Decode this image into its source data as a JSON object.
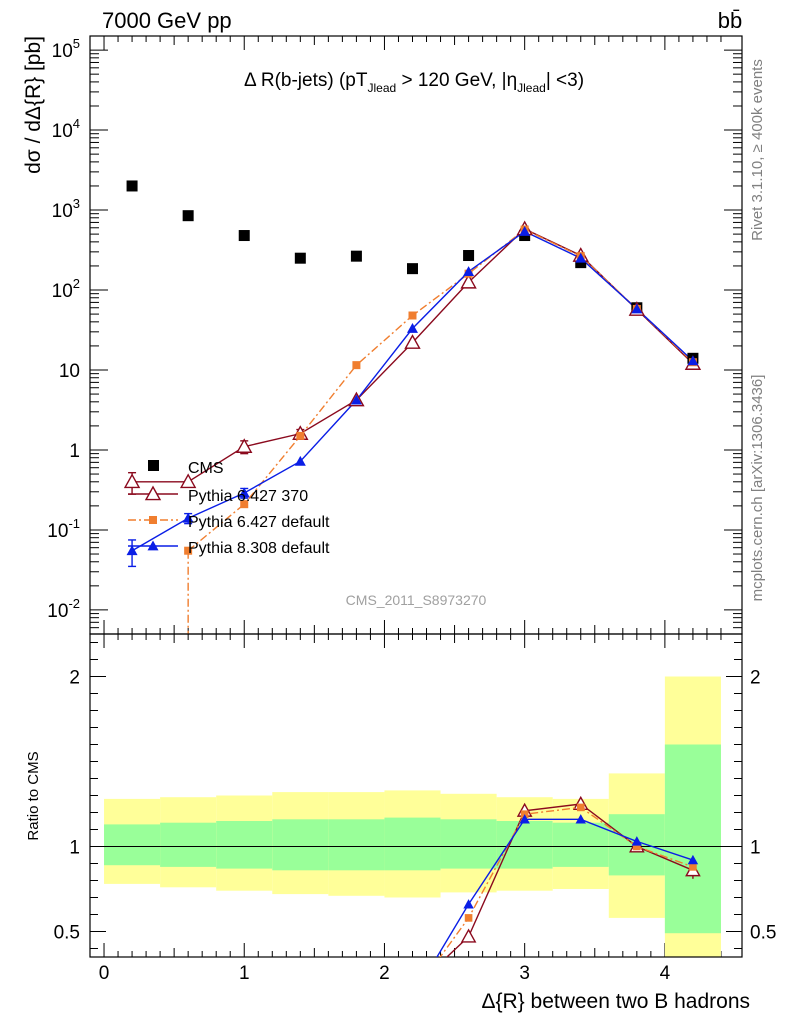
{
  "header": {
    "energy_label": "7000 GeV pp",
    "process_label": "bb̄",
    "plot_title": "Δ R(b-jets) (pT_Jlead > 120 GeV, |η_Jlead| <3)",
    "analysis_id": "CMS_2011_S8973270",
    "side_rivet": "Rivet 3.1.10, ≥ 400k events",
    "side_mcplots": "mcplots.cern.ch [arXiv:1306.3436]"
  },
  "chart_data": [
    {
      "type": "scatter",
      "panel": "main",
      "ylabel": "dσ / dΔ{R} [pb]",
      "yscale": "log",
      "ylim": [
        0.005,
        150000
      ],
      "xlim": [
        -0.1,
        4.55
      ],
      "ytick_labels": [
        "10^-2",
        "10^-1",
        "1",
        "10",
        "10^2",
        "10^3",
        "10^4",
        "10^5"
      ],
      "legend_position": "lower-left",
      "series": [
        {
          "name": "CMS",
          "style": "data",
          "color": "#000000",
          "x": [
            0.2,
            0.6,
            1.0,
            1.4,
            1.8,
            2.2,
            2.6,
            3.0,
            3.4,
            3.8,
            4.2
          ],
          "y": [
            2000,
            850,
            480,
            250,
            265,
            185,
            270,
            480,
            220,
            60,
            14
          ]
        },
        {
          "name": "Pythia 6.427 370",
          "style": "triangle-open",
          "color": "#8b0a1e",
          "x": [
            0.2,
            0.6,
            1.0,
            1.4,
            1.8,
            2.2,
            2.6,
            3.0,
            3.4,
            3.8,
            4.2
          ],
          "y": [
            0.4,
            0.4,
            1.1,
            1.6,
            4.2,
            22,
            125,
            580,
            270,
            57,
            12
          ],
          "yerr": [
            0.12,
            0,
            0.2,
            0.2,
            0,
            0,
            0,
            0,
            0,
            0,
            0
          ]
        },
        {
          "name": "Pythia 6.427 default",
          "style": "square-dashdot",
          "color": "#f07e2f",
          "x": [
            0.6,
            1.0,
            1.4,
            1.8,
            2.2,
            2.6,
            3.0,
            3.4,
            3.8,
            4.2
          ],
          "y": [
            0.055,
            0.21,
            1.5,
            11.5,
            48,
            160,
            570,
            265,
            58,
            12.5
          ]
        },
        {
          "name": "Pythia 8.308 default",
          "style": "triangle-filled",
          "color": "#0a1ee6",
          "x": [
            0.2,
            0.6,
            1.0,
            1.4,
            1.8,
            2.2,
            2.6,
            3.0,
            3.4,
            3.8,
            4.2
          ],
          "y": [
            0.055,
            0.14,
            0.29,
            0.72,
            4.2,
            33,
            170,
            540,
            250,
            58,
            13
          ],
          "yerr": [
            0.02,
            0.02,
            0.04,
            0,
            0,
            0,
            0,
            0,
            0,
            0,
            0
          ]
        }
      ]
    },
    {
      "type": "line",
      "panel": "ratio",
      "ylabel": "Ratio to CMS",
      "xlabel": "Δ{R} between two B hadrons",
      "ylim": [
        0.35,
        2.25
      ],
      "xlim": [
        -0.1,
        4.55
      ],
      "ytick_labels": [
        "0.5",
        "1",
        "2"
      ],
      "xtick_labels": [
        "0",
        "1",
        "2",
        "3",
        "4"
      ],
      "bands": {
        "edges": [
          0.0,
          0.4,
          0.8,
          1.2,
          1.6,
          2.0,
          2.4,
          2.8,
          3.2,
          3.6,
          4.0,
          4.4
        ],
        "yellow_lo": [
          0.78,
          0.76,
          0.74,
          0.72,
          0.71,
          0.7,
          0.73,
          0.74,
          0.75,
          0.58,
          0.35
        ],
        "yellow_hi": [
          1.28,
          1.29,
          1.3,
          1.32,
          1.32,
          1.33,
          1.31,
          1.29,
          1.28,
          1.43,
          2.0
        ],
        "green_lo": [
          0.89,
          0.88,
          0.87,
          0.86,
          0.86,
          0.86,
          0.87,
          0.87,
          0.88,
          0.83,
          0.49
        ],
        "green_hi": [
          1.13,
          1.14,
          1.15,
          1.16,
          1.16,
          1.17,
          1.16,
          1.15,
          1.14,
          1.19,
          1.6
        ]
      },
      "series": [
        {
          "name": "Pythia 6.427 370",
          "color": "#8b0a1e",
          "x": [
            2.42,
            2.6,
            3.0,
            3.4,
            3.8,
            4.2
          ],
          "y": [
            0.33,
            0.47,
            1.21,
            1.25,
            1.0,
            0.86
          ],
          "yerr": [
            0,
            0,
            0,
            0,
            0,
            0.05
          ]
        },
        {
          "name": "Pythia 6.427 default",
          "color": "#f07e2f",
          "x": [
            2.38,
            2.6,
            3.0,
            3.4,
            3.8,
            4.2
          ],
          "y": [
            0.33,
            0.58,
            1.19,
            1.23,
            1.0,
            0.88
          ]
        },
        {
          "name": "Pythia 8.308 default",
          "color": "#0a1ee6",
          "x": [
            2.36,
            2.6,
            3.0,
            3.4,
            3.8,
            4.2
          ],
          "y": [
            0.33,
            0.66,
            1.16,
            1.16,
            1.03,
            0.92
          ]
        }
      ]
    }
  ]
}
